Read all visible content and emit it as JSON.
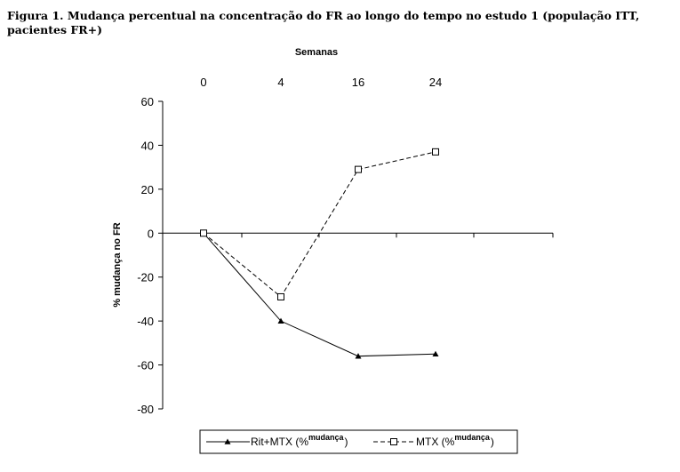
{
  "figure": {
    "caption": "Figura 1. Mudança percentual na concentração do FR ao longo do tempo no estudo 1 (população ITT, pacientes FR+)"
  },
  "chart_data": {
    "type": "line",
    "xlabel": "Semanas",
    "ylabel": "% mudança no FR",
    "categories": [
      "0",
      "4",
      "16",
      "24"
    ],
    "ylim": [
      -80,
      60
    ],
    "yticks": [
      60,
      40,
      20,
      0,
      -20,
      -40,
      -60,
      -80
    ],
    "series": [
      {
        "name": "Rit+MTX",
        "legend_label": "Rit+MTX (%",
        "legend_sup": "mudança",
        "legend_close": ")",
        "values": [
          0,
          -40,
          -56,
          -55
        ],
        "line_style": "solid",
        "marker": "filled-triangle",
        "color": "#000000"
      },
      {
        "name": "MTX",
        "legend_label": "MTX (%",
        "legend_sup": "mudança",
        "legend_close": ")",
        "values": [
          0,
          -29,
          29,
          37
        ],
        "line_style": "dashed",
        "marker": "open-square",
        "color": "#000000"
      }
    ],
    "legend_position": "bottom"
  }
}
